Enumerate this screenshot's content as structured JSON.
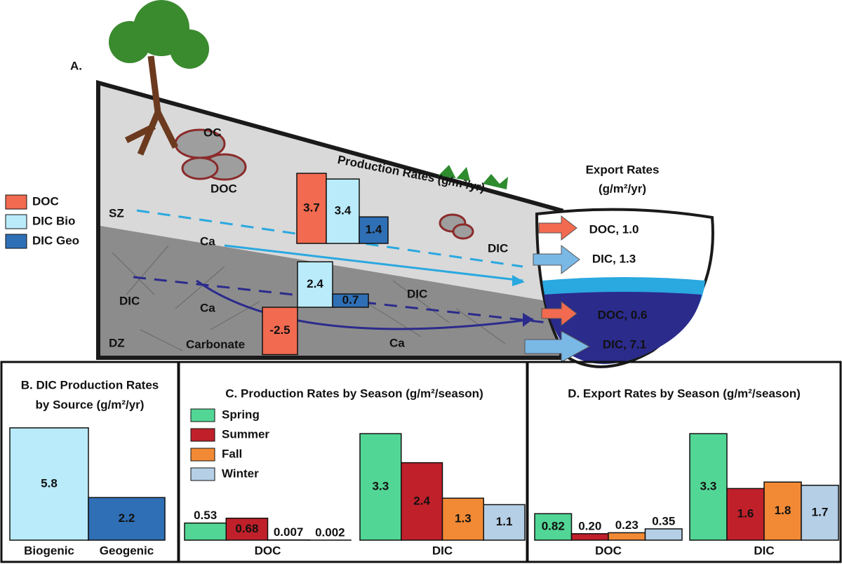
{
  "panel_a": {
    "label": "A.",
    "annotations": [
      "OC",
      "DOC",
      "SZ",
      "DZ",
      "Ca",
      "DIC",
      "DIC",
      "Ca",
      "DIC",
      "Ca",
      "Carbonate"
    ],
    "production_rates": {
      "title": "Production Rates (g/m²/yr)",
      "categories": [
        "SZ",
        "DZ"
      ],
      "series": [
        {
          "name": "DOC",
          "color": "#f26a50",
          "values": [
            3.7,
            -2.5
          ]
        },
        {
          "name": "DIC Bio",
          "color": "#b9ebfa",
          "values": [
            3.4,
            2.4
          ]
        },
        {
          "name": "DIC Geo",
          "color": "#2f6fb5",
          "values": [
            1.4,
            0.7
          ]
        }
      ]
    },
    "export_rates": {
      "title": "Export Rates",
      "unit": "(g/m²/yr)",
      "items": [
        "DOC, 1.0",
        "DIC, 1.3",
        "DOC, 0.6",
        "DIC, 7.1"
      ]
    }
  },
  "chart_data": [
    {
      "type": "bar",
      "title": "B. DIC Production Rates",
      "subtitle": "by Source (g/m²/yr)",
      "categories": [
        "Biogenic",
        "Geogenic"
      ],
      "values": [
        5.8,
        2.2
      ],
      "colors": [
        "#b9ebfa",
        "#2f6fb5"
      ]
    },
    {
      "type": "grouped_bar",
      "title": "C. Production Rates by Season (g/m²/season)",
      "categories": [
        "DOC",
        "DIC"
      ],
      "series": [
        {
          "name": "Spring",
          "color": "#52d695",
          "values": [
            0.53,
            3.3
          ]
        },
        {
          "name": "Summer",
          "color": "#c0202a",
          "values": [
            0.68,
            2.4
          ]
        },
        {
          "name": "Fall",
          "color": "#f28a35",
          "values": [
            0.007,
            1.3
          ]
        },
        {
          "name": "Winter",
          "color": "#b5cfe6",
          "values": [
            0.002,
            1.1
          ]
        }
      ]
    },
    {
      "type": "grouped_bar",
      "title": "D. Export Rates by Season (g/m²/season)",
      "categories": [
        "DOC",
        "DIC"
      ],
      "series": [
        {
          "color": "#52d695",
          "values": [
            0.82,
            3.3
          ]
        },
        {
          "color": "#c0202a",
          "values": [
            0.2,
            1.6
          ],
          "value_labels": [
            "0.20",
            "1.6"
          ]
        },
        {
          "color": "#f28a35",
          "values": [
            0.23,
            1.8
          ]
        },
        {
          "color": "#b5cfe6",
          "values": [
            0.35,
            1.7
          ]
        }
      ]
    }
  ]
}
